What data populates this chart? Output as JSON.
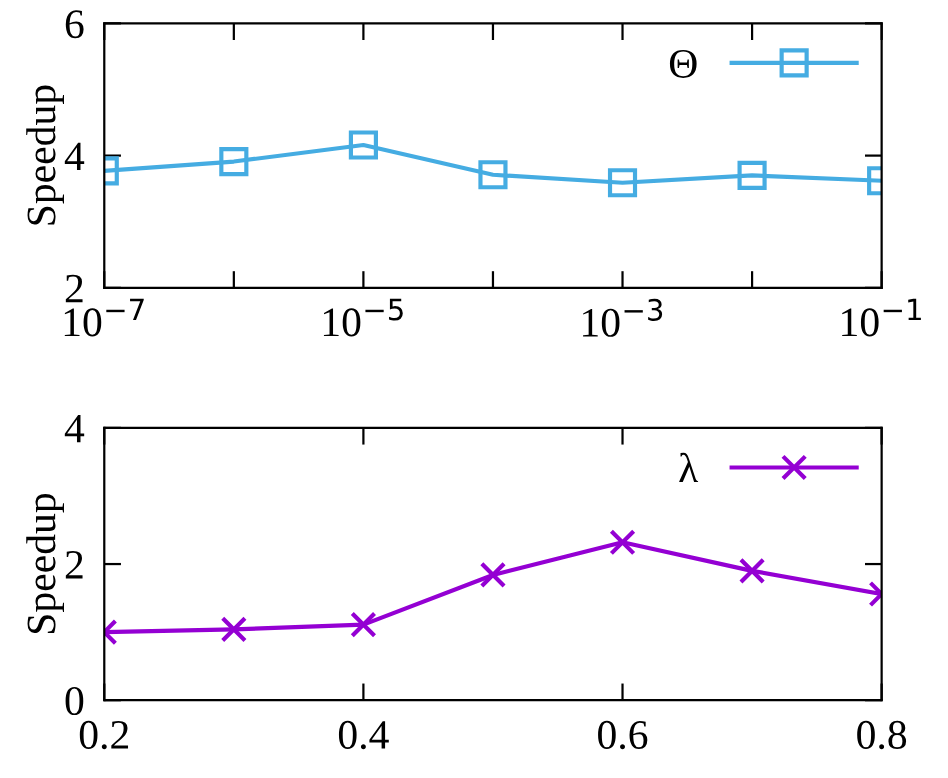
{
  "chart_data": [
    {
      "type": "line",
      "ylabel": "Speedup",
      "log": "x",
      "marker": "square",
      "legend": "top right",
      "grid": false,
      "x": [
        1e-07,
        1e-06,
        1e-05,
        0.0001,
        0.001,
        0.01,
        0.1
      ],
      "xlim": [
        1e-07,
        0.1
      ],
      "xticks": [
        {
          "value": 1e-07,
          "label": "10$^{−7}$"
        },
        {
          "value": 1e-06,
          "label": null
        },
        {
          "value": 1e-05,
          "label": "10$^{−5}$"
        },
        {
          "value": 0.0001,
          "label": null
        },
        {
          "value": 0.001,
          "label": "10$^{−3}$"
        },
        {
          "value": 0.01,
          "label": null
        },
        {
          "value": 0.1,
          "label": "10$^{−1}$"
        }
      ],
      "ylim": [
        2,
        6
      ],
      "yticks": [
        2,
        4,
        6
      ],
      "series": [
        {
          "name": "Θ",
          "color": "#45ace2",
          "values": [
            3.77,
            3.91,
            4.16,
            3.71,
            3.59,
            3.7,
            3.62
          ]
        }
      ]
    },
    {
      "type": "line",
      "ylabel": "Speedup",
      "marker": "cross",
      "legend": "top right",
      "grid": false,
      "x": [
        0.2,
        0.3,
        0.4,
        0.5,
        0.6,
        0.7,
        0.8
      ],
      "xlim": [
        0.2,
        0.8
      ],
      "xticks": [
        0.2,
        0.4,
        0.6,
        0.8
      ],
      "ylim": [
        0,
        4
      ],
      "yticks": [
        0,
        2,
        4
      ],
      "series": [
        {
          "name": "λ",
          "color": "#9400d3",
          "values": [
            1.0,
            1.04,
            1.11,
            1.84,
            2.32,
            1.9,
            1.56
          ]
        }
      ]
    }
  ]
}
